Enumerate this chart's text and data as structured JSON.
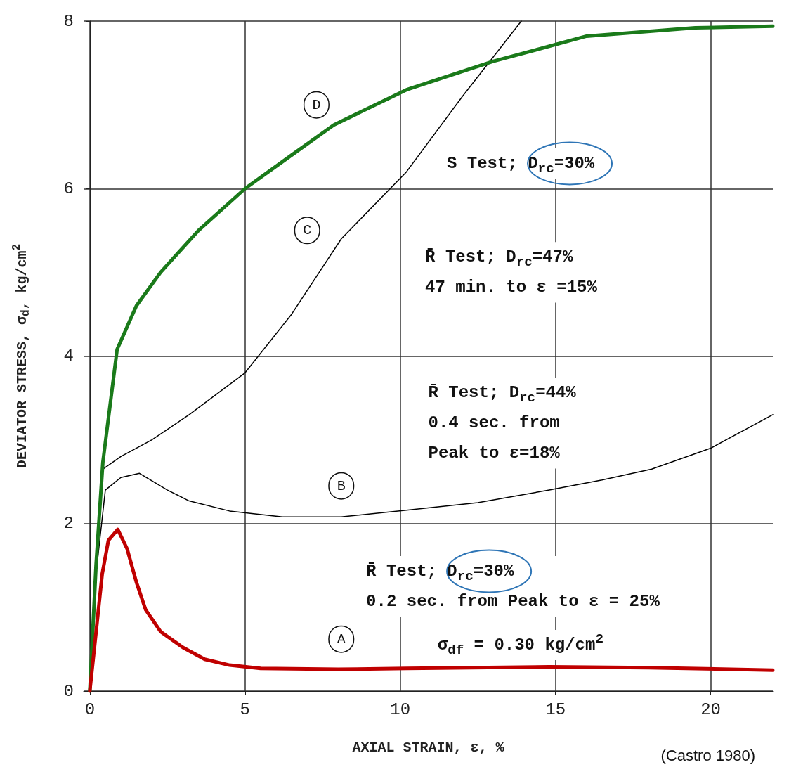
{
  "chart_data": {
    "type": "line",
    "xlabel": "AXIAL STRAIN, ε, %",
    "ylabel": "DEVIATOR STRESS, σ$_{d}$, kg/cm$^{2}$",
    "xlim": [
      -0.2,
      22
    ],
    "xticks": [
      0,
      5,
      10,
      15,
      20
    ],
    "ylim": [
      0,
      8
    ],
    "yticks": [
      0,
      2,
      4,
      6,
      8
    ],
    "grid": true,
    "marker": "none",
    "line_style": "solid",
    "series": [
      {
        "color": "#000000",
        "x": [
          0,
          0.2,
          0.42,
          1,
          2,
          3.2,
          5,
          6.5,
          8.1,
          10.2,
          12,
          13.9
        ],
        "values": [
          0,
          1.6,
          2.65,
          2.8,
          3.0,
          3.3,
          3.8,
          4.5,
          5.4,
          6.2,
          7.1,
          8.0
        ]
      },
      {
        "color": "#000000",
        "x": [
          0,
          0.2,
          0.5,
          1,
          1.6,
          2.5,
          3.2,
          4.5,
          6.2,
          8.1,
          10.2,
          12.5,
          14.8,
          16.5,
          18.1,
          20,
          22
        ],
        "values": [
          0,
          1.4,
          2.4,
          2.55,
          2.6,
          2.4,
          2.27,
          2.15,
          2.08,
          2.08,
          2.16,
          2.25,
          2.4,
          2.52,
          2.65,
          2.9,
          3.3
        ]
      },
      {
        "color": "#1a7a1a",
        "x": [
          0,
          0.2,
          0.42,
          0.88,
          1.5,
          2.28,
          3.5,
          5,
          6.5,
          7.86,
          10.2,
          13,
          16,
          19.5,
          22
        ],
        "values": [
          0,
          1.5,
          2.73,
          4.08,
          4.6,
          5.0,
          5.5,
          6.0,
          6.4,
          6.76,
          7.18,
          7.52,
          7.82,
          7.92,
          7.94
        ]
      },
      {
        "color": "#c00000",
        "x": [
          0,
          0.2,
          0.4,
          0.6,
          0.9,
          1.2,
          1.5,
          1.8,
          2.28,
          3,
          3.7,
          4.5,
          5.5,
          8,
          10.2,
          14.8,
          18,
          22
        ],
        "values": [
          0,
          0.7,
          1.4,
          1.8,
          1.93,
          1.7,
          1.3,
          0.97,
          0.71,
          0.52,
          0.38,
          0.31,
          0.27,
          0.26,
          0.27,
          0.29,
          0.28,
          0.25
        ]
      }
    ],
    "annotations": [
      "D",
      "S Test; D$_{rc}$=30%",
      "C",
      "R̄ Test; D$_{rc}$=47%\n47 min. to ε =15%",
      "B",
      "R̄ Test; D$_{rc}$=44%\n0.4 sec. from\nPeak to ε=18%",
      "A",
      "R̄ Test; D$_{rc}$=30%\n0.2 sec. from Peak to ε = 25%",
      "σ$_{df}$ = 0.30 kg/cm$^{2}$",
      "(Castro 1980)"
    ]
  }
}
